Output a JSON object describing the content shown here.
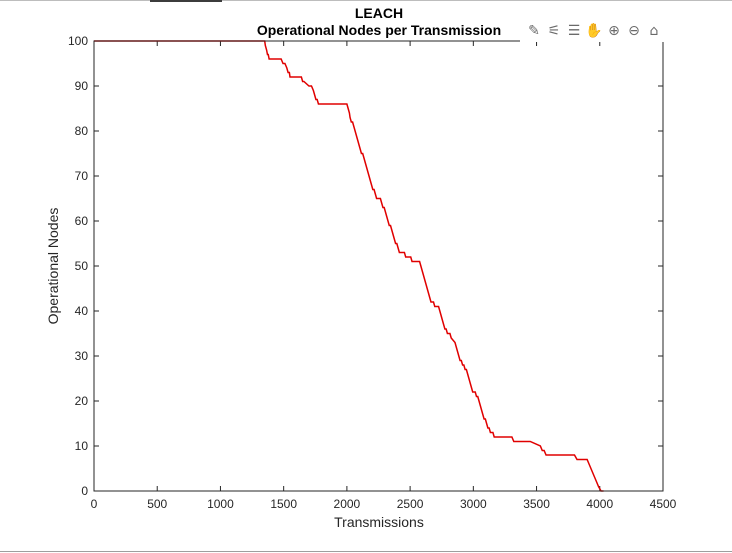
{
  "chart_data": {
    "type": "line",
    "title": "LEACH",
    "subtitle": "Operational Nodes per Transmission",
    "xlabel": "Transmissions",
    "ylabel": "Operational Nodes",
    "xlim": [
      0,
      4500
    ],
    "ylim": [
      0,
      100
    ],
    "xticks": [
      0,
      500,
      1000,
      1500,
      2000,
      2500,
      3000,
      3500,
      4000,
      4500
    ],
    "yticks": [
      0,
      10,
      20,
      30,
      40,
      50,
      60,
      70,
      80,
      90,
      100
    ],
    "xtick_labels": [
      "0",
      "500",
      "1000",
      "1500",
      "2000",
      "2500",
      "3000",
      "3500",
      "4000",
      "4500"
    ],
    "ytick_labels": [
      "0",
      "10",
      "20",
      "30",
      "40",
      "50",
      "60",
      "70",
      "80",
      "90",
      "100"
    ],
    "grid": false,
    "line_color": "#e00000",
    "series": [
      {
        "x": [
          0,
          1350,
          1355,
          1365,
          1372,
          1378,
          1385,
          1395,
          1480,
          1495,
          1510,
          1525,
          1535,
          1545,
          1550,
          1560,
          1640,
          1650,
          1660,
          1700,
          1720,
          1735,
          1745,
          1755,
          1765,
          1775,
          1785,
          1800,
          1820,
          2000,
          2010,
          2020,
          2025,
          2035,
          2045,
          2055,
          2065,
          2075,
          2085,
          2095,
          2105,
          2115,
          2125,
          2135,
          2145,
          2155,
          2165,
          2175,
          2185,
          2195,
          2205,
          2215,
          2225,
          2235,
          2265,
          2275,
          2285,
          2295,
          2305,
          2315,
          2325,
          2335,
          2345,
          2355,
          2365,
          2375,
          2385,
          2395,
          2405,
          2415,
          2445,
          2455,
          2465,
          2475,
          2485,
          2495,
          2505,
          2515,
          2575,
          2585,
          2595,
          2605,
          2615,
          2625,
          2635,
          2645,
          2655,
          2665,
          2675,
          2685,
          2695,
          2725,
          2735,
          2745,
          2755,
          2765,
          2775,
          2785,
          2795,
          2805,
          2815,
          2825,
          2855,
          2865,
          2875,
          2885,
          2895,
          2905,
          2915,
          2925,
          2935,
          2945,
          2955,
          2965,
          2975,
          2985,
          2995,
          3005,
          3015,
          3025,
          3035,
          3045,
          3055,
          3065,
          3075,
          3085,
          3095,
          3105,
          3115,
          3125,
          3135,
          3145,
          3155,
          3165,
          3175,
          3185,
          3195,
          3205,
          3215,
          3225,
          3235,
          3245,
          3265,
          3275,
          3290,
          3305,
          3320,
          3335,
          3350,
          3450,
          3530,
          3545,
          3560,
          3575,
          3595,
          3610,
          3620,
          3800,
          3820,
          3840,
          3900,
          3915,
          3930,
          3945,
          3960,
          3975,
          3990,
          4010,
          4030
        ],
        "y": [
          100,
          100,
          99,
          98,
          97,
          97,
          96,
          96,
          96,
          95,
          95,
          94,
          93,
          93,
          92,
          92,
          92,
          91,
          91,
          90,
          90,
          89,
          88,
          87,
          87,
          86,
          86,
          86,
          86,
          86,
          85,
          84,
          83,
          82,
          82,
          81,
          80,
          79,
          78,
          77,
          76,
          75,
          75,
          74,
          73,
          72,
          71,
          70,
          69,
          68,
          67,
          67,
          66,
          65,
          65,
          64,
          63,
          63,
          62,
          61,
          60,
          59,
          59,
          58,
          57,
          56,
          55,
          55,
          54,
          53,
          53,
          53,
          52,
          52,
          52,
          52,
          52,
          51,
          51,
          50,
          49,
          48,
          47,
          46,
          45,
          44,
          43,
          42,
          42,
          42,
          41,
          41,
          40,
          39,
          38,
          37,
          36,
          36,
          35,
          35,
          35,
          34,
          33,
          32,
          31,
          30,
          29,
          29,
          28,
          28,
          27,
          27,
          26,
          25,
          24,
          23,
          22,
          22,
          22,
          21,
          21,
          20,
          19,
          18,
          17,
          16,
          16,
          15,
          14,
          14,
          13,
          13,
          13,
          12,
          12,
          12,
          12,
          12,
          12,
          12,
          12,
          12,
          12,
          12,
          12,
          12,
          11,
          11,
          11,
          11,
          10,
          9,
          9,
          8,
          8,
          8,
          8,
          8,
          7,
          7,
          7,
          6,
          5,
          4,
          3,
          2,
          1,
          0,
          0
        ]
      }
    ]
  },
  "toolbar": {
    "buttons": [
      {
        "name": "edit-plot-icon",
        "symbol": "✎"
      },
      {
        "name": "brush-icon",
        "symbol": "⚟"
      },
      {
        "name": "data-tips-icon",
        "symbol": "☰"
      },
      {
        "name": "pan-icon",
        "symbol": "✋"
      },
      {
        "name": "zoom-in-icon",
        "symbol": "⊕"
      },
      {
        "name": "zoom-out-icon",
        "symbol": "⊖"
      },
      {
        "name": "home-icon",
        "symbol": "⌂"
      }
    ]
  }
}
